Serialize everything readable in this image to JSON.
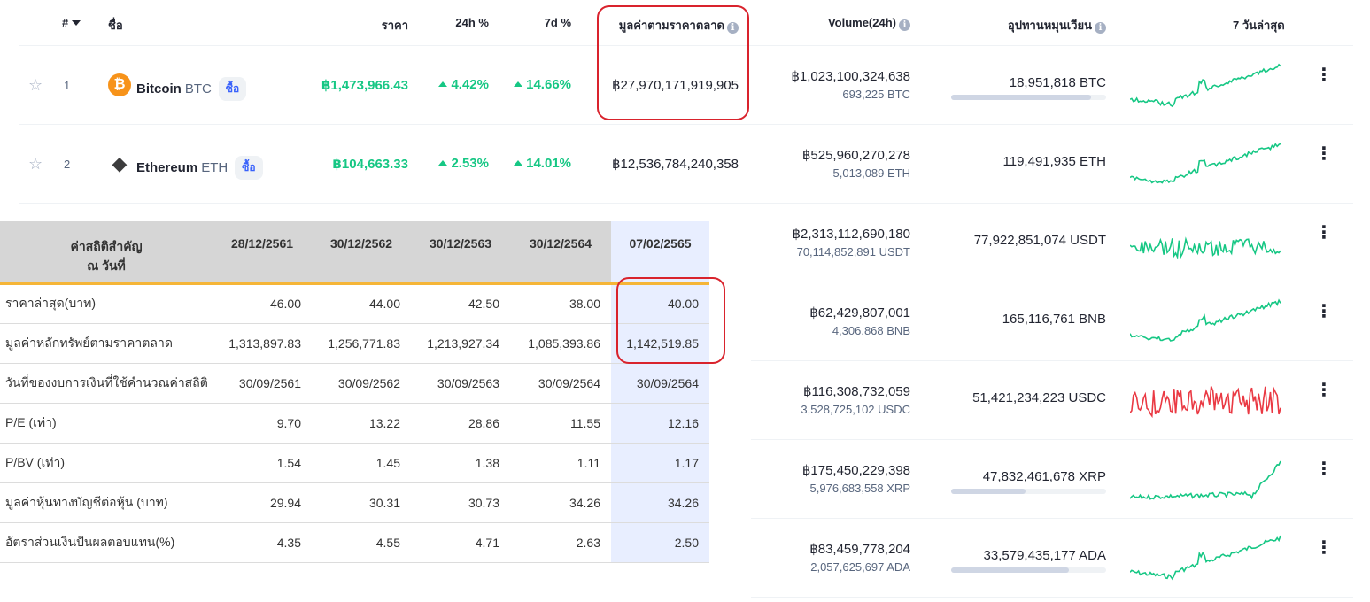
{
  "crypto_table": {
    "headers": {
      "rank": "#",
      "name": "ชื่อ",
      "price": "ราคา",
      "change_24h": "24h %",
      "change_7d": "7d %",
      "market_cap": "มูลค่าตามราคาตลาด",
      "volume": "Volume(24h)",
      "supply": "อุปทานหมุนเวียน",
      "last7": "7 วันล่าสุด"
    },
    "buy_label": "ซื้อ",
    "rows": [
      {
        "rank": "1",
        "name": "Bitcoin",
        "symbol": "BTC",
        "price": "฿1,473,966.43",
        "change_24h": "4.42%",
        "change_7d": "14.66%",
        "market_cap": "฿27,970,171,919,905",
        "volume": "฿1,023,100,324,638",
        "volume_coin": "693,225 BTC",
        "supply": "18,951,818 BTC",
        "supply_fill": 0.9,
        "icon": "bitcoin-icon",
        "icon_color": "#f7931a",
        "spark_color": "#16c784"
      },
      {
        "rank": "2",
        "name": "Ethereum",
        "symbol": "ETH",
        "price": "฿104,663.33",
        "change_24h": "2.53%",
        "change_7d": "14.01%",
        "market_cap": "฿12,536,784,240,358",
        "volume": "฿525,960,270,278",
        "volume_coin": "5,013,089 ETH",
        "supply": "119,491,935 ETH",
        "icon": "ethereum-icon",
        "icon_color": "#3c3c3d",
        "spark_color": "#16c784"
      },
      {
        "volume": "฿2,313,112,690,180",
        "volume_coin": "70,114,852,891 USDT",
        "supply": "77,922,851,074 USDT",
        "spark_color": "#16c784"
      },
      {
        "volume": "฿62,429,807,001",
        "volume_coin": "4,306,868 BNB",
        "supply": "165,116,761 BNB",
        "spark_color": "#16c784"
      },
      {
        "volume": "฿116,308,732,059",
        "volume_coin": "3,528,725,102 USDC",
        "supply": "51,421,234,223 USDC",
        "spark_color": "#ea3943"
      },
      {
        "volume": "฿175,450,229,398",
        "volume_coin": "5,976,683,558 XRP",
        "supply": "47,832,461,678 XRP",
        "supply_fill": 0.48,
        "spark_color": "#16c784"
      },
      {
        "volume": "฿83,459,778,204",
        "volume_coin": "2,057,625,697 ADA",
        "supply": "33,579,435,177 ADA",
        "supply_fill": 0.76,
        "spark_color": "#16c784"
      }
    ]
  },
  "stats_table": {
    "header_label_line1": "ค่าสถิติสำคัญ",
    "header_label_line2": "ณ วันที่",
    "dates": [
      "28/12/2561",
      "30/12/2562",
      "30/12/2563",
      "30/12/2564",
      "07/02/2565"
    ],
    "rows": [
      {
        "label": "ราคาล่าสุด(บาท)",
        "values": [
          "46.00",
          "44.00",
          "42.50",
          "38.00",
          "40.00"
        ]
      },
      {
        "label": "มูลค่าหลักทรัพย์ตามราคาตลาด",
        "values": [
          "1,313,897.83",
          "1,256,771.83",
          "1,213,927.34",
          "1,085,393.86",
          "1,142,519.85"
        ]
      },
      {
        "label": "วันที่ของงบการเงินที่ใช้คำนวณค่าสถิติ",
        "values": [
          "30/09/2561",
          "30/09/2562",
          "30/09/2563",
          "30/09/2564",
          "30/09/2564"
        ]
      },
      {
        "label": "P/E (เท่า)",
        "values": [
          "9.70",
          "13.22",
          "28.86",
          "11.55",
          "12.16"
        ]
      },
      {
        "label": "P/BV (เท่า)",
        "values": [
          "1.54",
          "1.45",
          "1.38",
          "1.11",
          "1.17"
        ]
      },
      {
        "label": "มูลค่าหุ้นทางบัญชีต่อหุ้น (บาท)",
        "values": [
          "29.94",
          "30.31",
          "30.73",
          "34.26",
          "34.26"
        ]
      },
      {
        "label": "อัตราส่วนเงินปันผลตอบแทน(%)",
        "values": [
          "4.35",
          "4.55",
          "4.71",
          "2.63",
          "2.50"
        ]
      }
    ]
  },
  "colors": {
    "green": "#16c784",
    "red": "#ea3943",
    "highlight": "#d9232d",
    "orange_line": "#f5b537"
  }
}
